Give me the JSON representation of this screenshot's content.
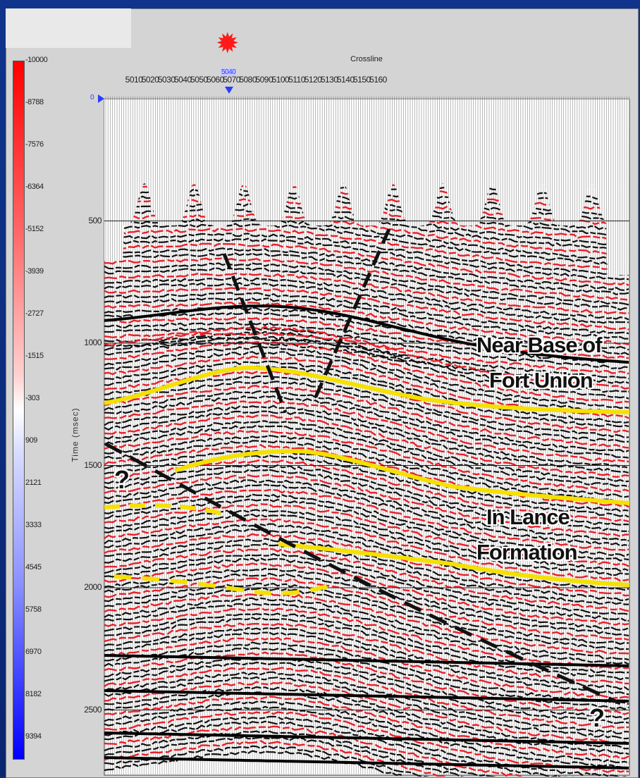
{
  "title": "Crossline",
  "y_axis_label": "Time (msec)",
  "colorbar": {
    "labels": [
      "-10000",
      "-8788",
      "-7576",
      "-6364",
      "-5152",
      "-3939",
      "-2727",
      "-1515",
      "-303",
      "909",
      "2121",
      "3333",
      "4545",
      "5758",
      "6970",
      "8182",
      "9394"
    ],
    "colors": {
      "positive": "#ff0000",
      "mid": "#ffffff",
      "negative": "#0000ff"
    }
  },
  "crossline_ticks": [
    "5010",
    "5020",
    "5030",
    "5040",
    "5050",
    "5060",
    "5070",
    "5080",
    "5090",
    "5100",
    "5110",
    "5120",
    "5130",
    "5140",
    "5150",
    "5160"
  ],
  "selected_crossline": "5040",
  "time_ticks": [
    "0",
    "500",
    "1000",
    "1500",
    "2000",
    "2500"
  ],
  "annotations": {
    "near_base_line1": "Near Base of",
    "near_base_line2": "Fort Union",
    "in_lance_line1": "In Lance",
    "in_lance_line2": "Formation",
    "question_left": "?",
    "question_bottom": "?"
  },
  "icons": {
    "well_marker": "sun-icon"
  },
  "horizon_color": "#f5e000",
  "fault_color": "#111111"
}
